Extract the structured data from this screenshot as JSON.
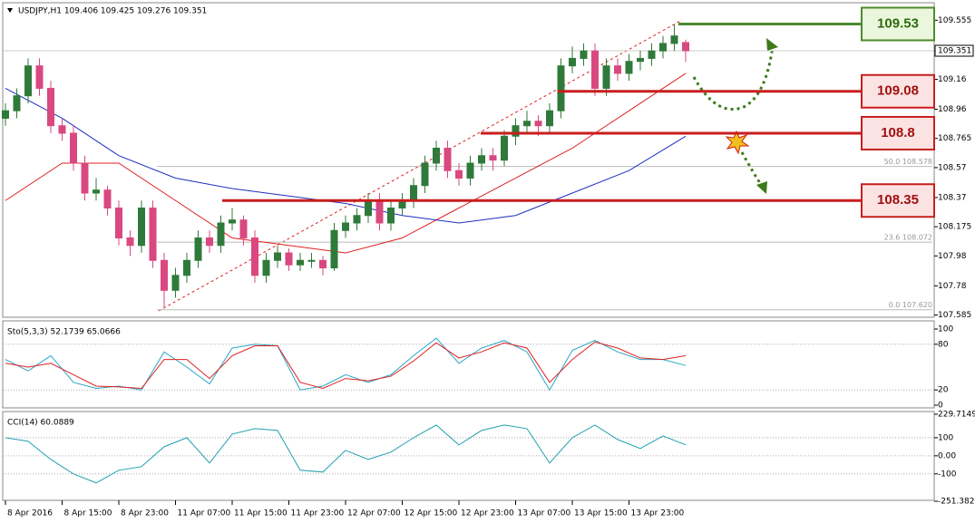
{
  "chart_data": [
    {
      "type": "candlestick",
      "title": "USDJPY,H1  109.406 109.425 109.276 109.351",
      "up_color": "#2f7a3a",
      "down_color": "#d9487f",
      "xlim": [
        -0.24,
        81.92
      ],
      "xticks": [
        {
          "value": 0,
          "label": "8 Apr 2016"
        },
        {
          "value": 5,
          "label": "8 Apr 15:00"
        },
        {
          "value": 10,
          "label": "8 Apr 23:00"
        },
        {
          "value": 15,
          "label": "11 Apr 07:00"
        },
        {
          "value": 20,
          "label": "11 Apr 15:00"
        },
        {
          "value": 25,
          "label": "11 Apr 23:00"
        },
        {
          "value": 30,
          "label": "12 Apr 07:00"
        },
        {
          "value": 35,
          "label": "12 Apr 15:00"
        },
        {
          "value": 40,
          "label": "12 Apr 23:00"
        },
        {
          "value": 45,
          "label": "13 Apr 07:00"
        },
        {
          "value": 50,
          "label": "13 Apr 15:00"
        },
        {
          "value": 55,
          "label": "13 Apr 23:00"
        }
      ],
      "ylim": [
        107.57,
        109.66
      ],
      "yticks": [
        109.555,
        109.351,
        109.16,
        108.96,
        108.765,
        108.57,
        108.37,
        108.175,
        107.98,
        107.78,
        107.585
      ],
      "ohlc": [
        [
          108.9,
          109.0,
          108.85,
          108.95
        ],
        [
          108.95,
          109.1,
          108.9,
          109.05
        ],
        [
          109.05,
          109.3,
          109.0,
          109.25
        ],
        [
          109.25,
          109.3,
          109.05,
          109.1
        ],
        [
          109.1,
          109.15,
          108.8,
          108.85
        ],
        [
          108.85,
          108.9,
          108.75,
          108.8
        ],
        [
          108.8,
          108.85,
          108.55,
          108.6
        ],
        [
          108.6,
          108.65,
          108.35,
          108.4
        ],
        [
          108.4,
          108.5,
          108.35,
          108.42
        ],
        [
          108.42,
          108.45,
          108.25,
          108.3
        ],
        [
          108.3,
          108.35,
          108.05,
          108.1
        ],
        [
          108.1,
          108.15,
          107.98,
          108.05
        ],
        [
          108.05,
          108.35,
          108.0,
          108.3
        ],
        [
          108.3,
          108.35,
          107.9,
          107.95
        ],
        [
          107.95,
          108.0,
          107.63,
          107.75
        ],
        [
          107.75,
          107.9,
          107.7,
          107.85
        ],
        [
          107.85,
          108.0,
          107.8,
          107.95
        ],
        [
          107.95,
          108.15,
          107.9,
          108.1
        ],
        [
          108.1,
          108.15,
          108.0,
          108.05
        ],
        [
          108.05,
          108.25,
          108.0,
          108.2
        ],
        [
          108.2,
          108.3,
          108.15,
          108.22
        ],
        [
          108.22,
          108.25,
          108.05,
          108.1
        ],
        [
          108.1,
          108.15,
          107.8,
          107.85
        ],
        [
          107.85,
          108.0,
          107.8,
          107.95
        ],
        [
          107.95,
          108.05,
          107.9,
          108.0
        ],
        [
          108.0,
          108.03,
          107.88,
          107.92
        ],
        [
          107.92,
          108.0,
          107.88,
          107.95
        ],
        [
          107.95,
          108.0,
          107.9,
          107.95
        ],
        [
          107.95,
          107.98,
          107.85,
          107.9
        ],
        [
          107.9,
          108.2,
          107.88,
          108.15
        ],
        [
          108.15,
          108.25,
          108.1,
          108.2
        ],
        [
          108.2,
          108.3,
          108.15,
          108.25
        ],
        [
          108.25,
          108.4,
          108.2,
          108.35
        ],
        [
          108.35,
          108.4,
          108.15,
          108.2
        ],
        [
          108.2,
          108.35,
          108.15,
          108.3
        ],
        [
          108.3,
          108.4,
          108.25,
          108.35
        ],
        [
          108.35,
          108.5,
          108.3,
          108.45
        ],
        [
          108.45,
          108.65,
          108.4,
          108.6
        ],
        [
          108.6,
          108.75,
          108.55,
          108.7
        ],
        [
          108.7,
          108.75,
          108.5,
          108.55
        ],
        [
          108.55,
          108.6,
          108.45,
          108.5
        ],
        [
          108.5,
          108.65,
          108.45,
          108.6
        ],
        [
          108.6,
          108.7,
          108.55,
          108.65
        ],
        [
          108.65,
          108.7,
          108.55,
          108.62
        ],
        [
          108.62,
          108.82,
          108.58,
          108.78
        ],
        [
          108.78,
          108.9,
          108.72,
          108.85
        ],
        [
          108.85,
          108.95,
          108.8,
          108.88
        ],
        [
          108.88,
          108.92,
          108.78,
          108.85
        ],
        [
          108.85,
          109.0,
          108.8,
          108.95
        ],
        [
          108.95,
          109.3,
          108.9,
          109.25
        ],
        [
          109.25,
          109.38,
          109.2,
          109.3
        ],
        [
          109.3,
          109.4,
          109.25,
          109.35
        ],
        [
          109.35,
          109.4,
          109.05,
          109.1
        ],
        [
          109.1,
          109.3,
          109.05,
          109.25
        ],
        [
          109.25,
          109.3,
          109.15,
          109.2
        ],
        [
          109.2,
          109.33,
          109.15,
          109.28
        ],
        [
          109.28,
          109.35,
          109.22,
          109.3
        ],
        [
          109.3,
          109.4,
          109.25,
          109.35
        ],
        [
          109.35,
          109.45,
          109.3,
          109.4
        ],
        [
          109.4,
          109.53,
          109.35,
          109.45
        ],
        [
          109.406,
          109.425,
          109.276,
          109.351
        ]
      ],
      "series": [
        {
          "color": "#e02020",
          "x": [
            0,
            5,
            10,
            15,
            20,
            25,
            30,
            35,
            40,
            45,
            50,
            55,
            60
          ],
          "values": [
            108.35,
            108.6,
            108.6,
            108.35,
            108.1,
            108.05,
            108.0,
            108.1,
            108.3,
            108.5,
            108.7,
            108.95,
            109.2
          ]
        },
        {
          "color": "#1e2fc0",
          "x": [
            0,
            5,
            10,
            15,
            20,
            25,
            30,
            35,
            40,
            45,
            50,
            55,
            60
          ],
          "values": [
            109.1,
            108.9,
            108.65,
            108.5,
            108.43,
            108.38,
            108.33,
            108.25,
            108.2,
            108.25,
            108.4,
            108.55,
            108.78
          ]
        }
      ],
      "levels": [
        {
          "value": 109.53,
          "color": "#4e8a2e"
        },
        {
          "value": 109.08,
          "color": "#c81e1e"
        },
        {
          "value": 108.8,
          "color": "#c81e1e"
        },
        {
          "value": 108.35,
          "color": "#c81e1e"
        }
      ],
      "fib_levels": [
        {
          "value": 108.578,
          "label": "50.0 108.578"
        },
        {
          "value": 108.072,
          "label": "23.6 108.072"
        },
        {
          "value": 107.62,
          "label": "0.0 107.620"
        }
      ]
    },
    {
      "type": "line",
      "title": "Sto(5,3,3) 52.1739 65.0666",
      "ylim": [
        0,
        100
      ],
      "yticks": [
        100,
        80,
        20,
        0
      ],
      "grid": true,
      "series": [
        {
          "color": "#2aa6c8",
          "x": [
            0,
            2,
            4,
            6,
            8,
            10,
            12,
            14,
            16,
            18,
            20,
            22,
            24,
            26,
            28,
            30,
            32,
            34,
            36,
            38,
            40,
            42,
            44,
            46,
            48,
            50,
            52,
            54,
            56,
            58,
            60
          ],
          "values": [
            60,
            45,
            65,
            30,
            22,
            25,
            20,
            70,
            50,
            28,
            75,
            80,
            78,
            20,
            25,
            40,
            30,
            40,
            65,
            88,
            55,
            75,
            85,
            70,
            20,
            72,
            85,
            70,
            60,
            60,
            52.1739
          ]
        },
        {
          "color": "#e02020",
          "x": [
            0,
            2,
            4,
            6,
            8,
            10,
            12,
            14,
            16,
            18,
            20,
            22,
            24,
            26,
            28,
            30,
            32,
            34,
            36,
            38,
            40,
            42,
            44,
            46,
            48,
            50,
            52,
            54,
            56,
            58,
            60
          ],
          "values": [
            55,
            50,
            55,
            40,
            25,
            24,
            22,
            60,
            60,
            35,
            65,
            78,
            78,
            30,
            22,
            35,
            32,
            38,
            58,
            82,
            62,
            70,
            82,
            75,
            30,
            60,
            83,
            75,
            62,
            60,
            65.0666
          ]
        }
      ]
    },
    {
      "type": "line",
      "title": "CCI(14) 60.0889",
      "ylim": [
        -251.3826,
        229.7149
      ],
      "yticks": [
        229.7149,
        100,
        {
          "value": 0,
          "label": "0.00"
        },
        -100,
        -251.3826
      ],
      "grid": true,
      "series": [
        {
          "color": "#20a0b0",
          "x": [
            0,
            2,
            4,
            6,
            8,
            10,
            12,
            14,
            16,
            18,
            20,
            22,
            24,
            26,
            28,
            30,
            32,
            34,
            36,
            38,
            40,
            42,
            44,
            46,
            48,
            50,
            52,
            54,
            56,
            58,
            60
          ],
          "values": [
            100,
            80,
            -20,
            -100,
            -150,
            -80,
            -60,
            50,
            100,
            -40,
            120,
            150,
            140,
            -80,
            -90,
            30,
            -20,
            20,
            100,
            170,
            60,
            140,
            170,
            150,
            -40,
            100,
            170,
            90,
            40,
            110,
            60.0889
          ]
        }
      ]
    }
  ]
}
